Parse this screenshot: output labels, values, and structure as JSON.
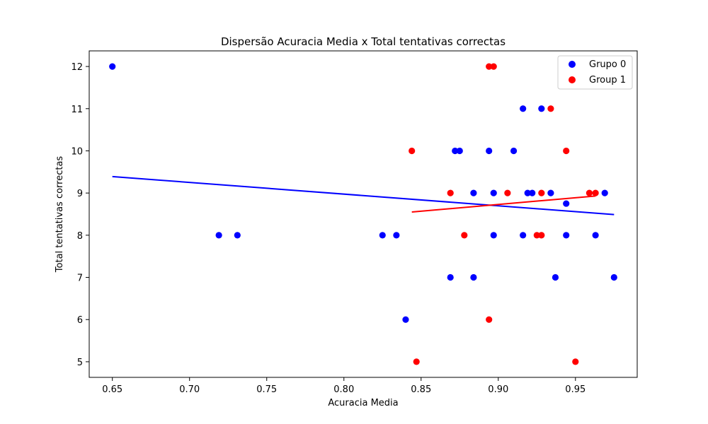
{
  "chart_data": {
    "type": "scatter",
    "title": "Dispersão Acuracia Media x Total tentativas correctas",
    "xlabel": "Acuracia Media",
    "ylabel": "Total tentativas correctas",
    "xlim": [
      0.635,
      0.99
    ],
    "ylim": [
      4.63,
      12.37
    ],
    "xticks": [
      0.65,
      0.7,
      0.75,
      0.8,
      0.85,
      0.9,
      0.95
    ],
    "xtick_labels": [
      "0.65",
      "0.70",
      "0.75",
      "0.80",
      "0.85",
      "0.90",
      "0.95"
    ],
    "yticks": [
      5,
      6,
      7,
      8,
      9,
      10,
      11,
      12
    ],
    "ytick_labels": [
      "5",
      "6",
      "7",
      "8",
      "9",
      "10",
      "11",
      "12"
    ],
    "grid": false,
    "legend_position": "top-right",
    "series": [
      {
        "name": "Grupo 0",
        "color": "#0000ff",
        "points": [
          [
            0.65,
            12
          ],
          [
            0.719,
            8
          ],
          [
            0.731,
            8
          ],
          [
            0.825,
            8
          ],
          [
            0.834,
            8
          ],
          [
            0.84,
            6
          ],
          [
            0.869,
            7
          ],
          [
            0.872,
            10
          ],
          [
            0.875,
            10
          ],
          [
            0.884,
            9
          ],
          [
            0.884,
            7
          ],
          [
            0.894,
            10
          ],
          [
            0.897,
            9
          ],
          [
            0.897,
            8
          ],
          [
            0.91,
            10
          ],
          [
            0.916,
            11
          ],
          [
            0.916,
            8
          ],
          [
            0.919,
            9
          ],
          [
            0.922,
            9
          ],
          [
            0.928,
            11
          ],
          [
            0.934,
            9
          ],
          [
            0.937,
            7
          ],
          [
            0.944,
            8.75
          ],
          [
            0.944,
            8
          ],
          [
            0.963,
            8
          ],
          [
            0.969,
            9
          ],
          [
            0.975,
            7
          ]
        ],
        "trend": {
          "x": [
            0.65,
            0.975
          ],
          "y": [
            9.39,
            8.49
          ]
        }
      },
      {
        "name": "Group 1",
        "color": "#ff0000",
        "points": [
          [
            0.844,
            10
          ],
          [
            0.847,
            5
          ],
          [
            0.869,
            9
          ],
          [
            0.878,
            8
          ],
          [
            0.894,
            12
          ],
          [
            0.897,
            12
          ],
          [
            0.894,
            6
          ],
          [
            0.906,
            9
          ],
          [
            0.925,
            8
          ],
          [
            0.928,
            8
          ],
          [
            0.928,
            9
          ],
          [
            0.934,
            11
          ],
          [
            0.944,
            10
          ],
          [
            0.95,
            5
          ],
          [
            0.959,
            9
          ],
          [
            0.963,
            9
          ]
        ],
        "trend": {
          "x": [
            0.844,
            0.963
          ],
          "y": [
            8.55,
            8.93
          ]
        }
      }
    ]
  }
}
